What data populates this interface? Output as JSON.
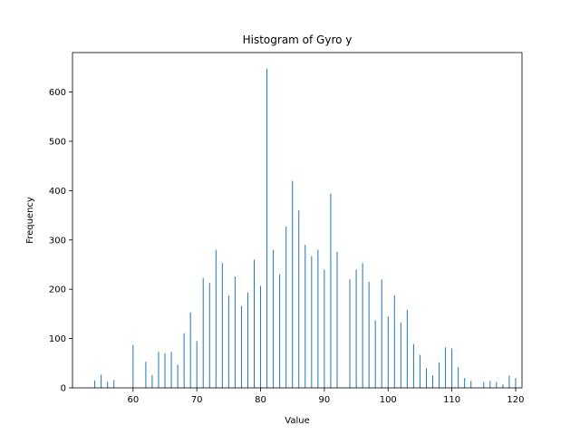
{
  "chart_data": {
    "type": "bar",
    "title": "Histogram of Gyro y",
    "xlabel": "Value",
    "ylabel": "Frequency",
    "xlim": [
      50.5,
      121
    ],
    "ylim": [
      0,
      680
    ],
    "xticks": [
      60,
      70,
      80,
      90,
      100,
      110,
      120
    ],
    "yticks": [
      0,
      100,
      200,
      300,
      400,
      500,
      600
    ],
    "grid": false,
    "bar_color": "#1f77b4",
    "series": [
      {
        "x": [
          54,
          55,
          56,
          57,
          60,
          62,
          63,
          64,
          65,
          66,
          67,
          68,
          69,
          70,
          71,
          72,
          73,
          74,
          75,
          76,
          77,
          78,
          79,
          80,
          81,
          82,
          83,
          84,
          85,
          86,
          87,
          88,
          89,
          90,
          91,
          92,
          94,
          95,
          96,
          97,
          98,
          99,
          100,
          101,
          102,
          103,
          104,
          105,
          106,
          107,
          108,
          109,
          110,
          111,
          112,
          113,
          115,
          116,
          117,
          118,
          119,
          120
        ],
        "values": [
          15,
          27,
          12,
          16,
          87,
          53,
          26,
          73,
          70,
          73,
          47,
          111,
          153,
          95,
          223,
          213,
          280,
          253,
          187,
          226,
          166,
          193,
          260,
          207,
          647,
          280,
          230,
          327,
          420,
          360,
          290,
          267,
          280,
          240,
          394,
          276,
          220,
          240,
          253,
          215,
          137,
          220,
          145,
          188,
          133,
          158,
          89,
          67,
          40,
          25,
          52,
          82,
          80,
          42,
          20,
          14,
          12,
          14,
          12,
          7,
          25,
          20
        ]
      }
    ]
  }
}
